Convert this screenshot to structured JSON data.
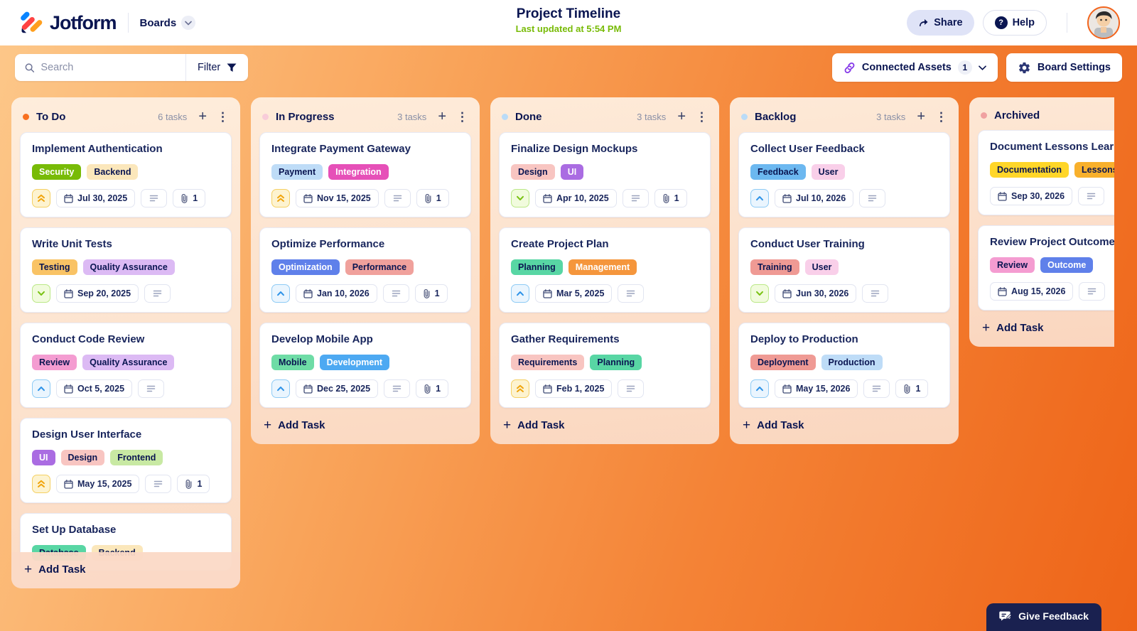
{
  "header": {
    "logo_text": "Jotform",
    "nav_label": "Boards",
    "title": "Project Timeline",
    "subtitle": "Last updated at 5:54 PM",
    "share_label": "Share",
    "help_label": "Help"
  },
  "toolbar": {
    "search_placeholder": "Search",
    "filter_label": "Filter",
    "connected_assets_label": "Connected Assets",
    "connected_assets_count": "1",
    "board_settings_label": "Board Settings"
  },
  "board": {
    "add_task_label": "Add Task",
    "columns": [
      {
        "name": "To Do",
        "count": "6 tasks",
        "dot_color": "#f8701f",
        "fixed_height": true,
        "show_controls": true,
        "tasks": [
          {
            "title": "Implement Authentication",
            "tags": [
              {
                "label": "Security",
                "bg": "#78bb07",
                "fg": "#ffffff"
              },
              {
                "label": "Backend",
                "bg": "#fbe7bb",
                "fg": "#0a1551"
              }
            ],
            "priority": "highest",
            "date": "Jul 30, 2025",
            "has_desc": true,
            "attachments": "1"
          },
          {
            "title": "Write Unit Tests",
            "tags": [
              {
                "label": "Testing",
                "bg": "#f9c365",
                "fg": "#0a1551"
              },
              {
                "label": "Quality Assurance",
                "bg": "#dcbaf4",
                "fg": "#0a1551"
              }
            ],
            "priority": "low",
            "date": "Sep 20, 2025",
            "has_desc": true
          },
          {
            "title": "Conduct Code Review",
            "tags": [
              {
                "label": "Review",
                "bg": "#f49cd1",
                "fg": "#0a1551"
              },
              {
                "label": "Quality Assurance",
                "bg": "#dcbaf4",
                "fg": "#0a1551"
              }
            ],
            "priority": "medium",
            "date": "Oct 5, 2025",
            "has_desc": true
          },
          {
            "title": "Design User Interface",
            "tags": [
              {
                "label": "UI",
                "bg": "#aa6ce2",
                "fg": "#ffffff"
              },
              {
                "label": "Design",
                "bg": "#f8c5c1",
                "fg": "#0a1551"
              },
              {
                "label": "Frontend",
                "bg": "#c8e9a3",
                "fg": "#0a1551"
              }
            ],
            "priority": "highest",
            "date": "May 15, 2025",
            "has_desc": true,
            "attachments": "1"
          },
          {
            "title": "Set Up Database",
            "tags": [
              {
                "label": "Database",
                "bg": "#58d6a4",
                "fg": "#0a1551"
              },
              {
                "label": "Backend",
                "bg": "#fbe7bb",
                "fg": "#0a1551"
              }
            ]
          }
        ]
      },
      {
        "name": "In Progress",
        "count": "3 tasks",
        "dot_color": "#f8ccd9",
        "fixed_height": false,
        "show_controls": true,
        "tasks": [
          {
            "title": "Integrate Payment Gateway",
            "tags": [
              {
                "label": "Payment",
                "bg": "#bedcf7",
                "fg": "#0a1551"
              },
              {
                "label": "Integration",
                "bg": "#e650b8",
                "fg": "#ffffff"
              }
            ],
            "priority": "highest",
            "date": "Nov 15, 2025",
            "has_desc": true,
            "attachments": "1"
          },
          {
            "title": "Optimize Performance",
            "tags": [
              {
                "label": "Optimization",
                "bg": "#5f80ea",
                "fg": "#ffffff"
              },
              {
                "label": "Performance",
                "bg": "#f0a19c",
                "fg": "#0a1551"
              }
            ],
            "priority": "medium",
            "date": "Jan 10, 2026",
            "has_desc": true,
            "attachments": "1"
          },
          {
            "title": "Develop Mobile App",
            "tags": [
              {
                "label": "Mobile",
                "bg": "#6edca6",
                "fg": "#0a1551"
              },
              {
                "label": "Development",
                "bg": "#4da9f2",
                "fg": "#ffffff"
              }
            ],
            "priority": "medium",
            "date": "Dec 25, 2025",
            "has_desc": true,
            "attachments": "1"
          }
        ]
      },
      {
        "name": "Done",
        "count": "3 tasks",
        "dot_color": "#badbf7",
        "fixed_height": false,
        "show_controls": true,
        "tasks": [
          {
            "title": "Finalize Design Mockups",
            "tags": [
              {
                "label": "Design",
                "bg": "#f8c5c1",
                "fg": "#0a1551"
              },
              {
                "label": "UI",
                "bg": "#aa6ce2",
                "fg": "#ffffff"
              }
            ],
            "priority": "low",
            "date": "Apr 10, 2025",
            "has_desc": true,
            "attachments": "1"
          },
          {
            "title": "Create Project Plan",
            "tags": [
              {
                "label": "Planning",
                "bg": "#58d6a4",
                "fg": "#0a1551"
              },
              {
                "label": "Management",
                "bg": "#f5963c",
                "fg": "#ffffff"
              }
            ],
            "priority": "medium",
            "date": "Mar 5, 2025",
            "has_desc": true
          },
          {
            "title": "Gather Requirements",
            "tags": [
              {
                "label": "Requirements",
                "bg": "#f8c5c1",
                "fg": "#0a1551"
              },
              {
                "label": "Planning",
                "bg": "#58d6a4",
                "fg": "#0a1551"
              }
            ],
            "priority": "highest",
            "date": "Feb 1, 2025",
            "has_desc": true
          }
        ]
      },
      {
        "name": "Backlog",
        "count": "3 tasks",
        "dot_color": "#badbf7",
        "fixed_height": false,
        "show_controls": true,
        "tasks": [
          {
            "title": "Collect User Feedback",
            "tags": [
              {
                "label": "Feedback",
                "bg": "#6cb8f0",
                "fg": "#0a1551"
              },
              {
                "label": "User",
                "bg": "#f9cfe9",
                "fg": "#0a1551"
              }
            ],
            "priority": "medium",
            "date": "Jul 10, 2026",
            "has_desc": true
          },
          {
            "title": "Conduct User Training",
            "tags": [
              {
                "label": "Training",
                "bg": "#ef9a94",
                "fg": "#0a1551"
              },
              {
                "label": "User",
                "bg": "#f9cfe9",
                "fg": "#0a1551"
              }
            ],
            "priority": "low",
            "date": "Jun 30, 2026",
            "has_desc": true
          },
          {
            "title": "Deploy to Production",
            "tags": [
              {
                "label": "Deployment",
                "bg": "#ef9a94",
                "fg": "#0a1551"
              },
              {
                "label": "Production",
                "bg": "#bedcf7",
                "fg": "#0a1551"
              }
            ],
            "priority": "medium",
            "date": "May 15, 2026",
            "has_desc": true,
            "attachments": "1"
          }
        ]
      },
      {
        "name": "Archived",
        "count": "",
        "dot_color": "#f0a1a1",
        "fixed_height": false,
        "show_controls": false,
        "tasks": [
          {
            "title": "Document Lessons Learned",
            "tags": [
              {
                "label": "Documentation",
                "bg": "#ffd629",
                "fg": "#0a1551"
              },
              {
                "label": "Lessons",
                "bg": "#f8b02c",
                "fg": "#0a1551"
              }
            ],
            "date": "Sep 30, 2026",
            "has_desc": true
          },
          {
            "title": "Review Project Outcome",
            "tags": [
              {
                "label": "Review",
                "bg": "#f49cd1",
                "fg": "#0a1551"
              },
              {
                "label": "Outcome",
                "bg": "#5f80ea",
                "fg": "#ffffff"
              }
            ],
            "date": "Aug 15, 2026",
            "has_desc": true
          }
        ]
      }
    ]
  },
  "feedback": {
    "label": "Give Feedback"
  }
}
